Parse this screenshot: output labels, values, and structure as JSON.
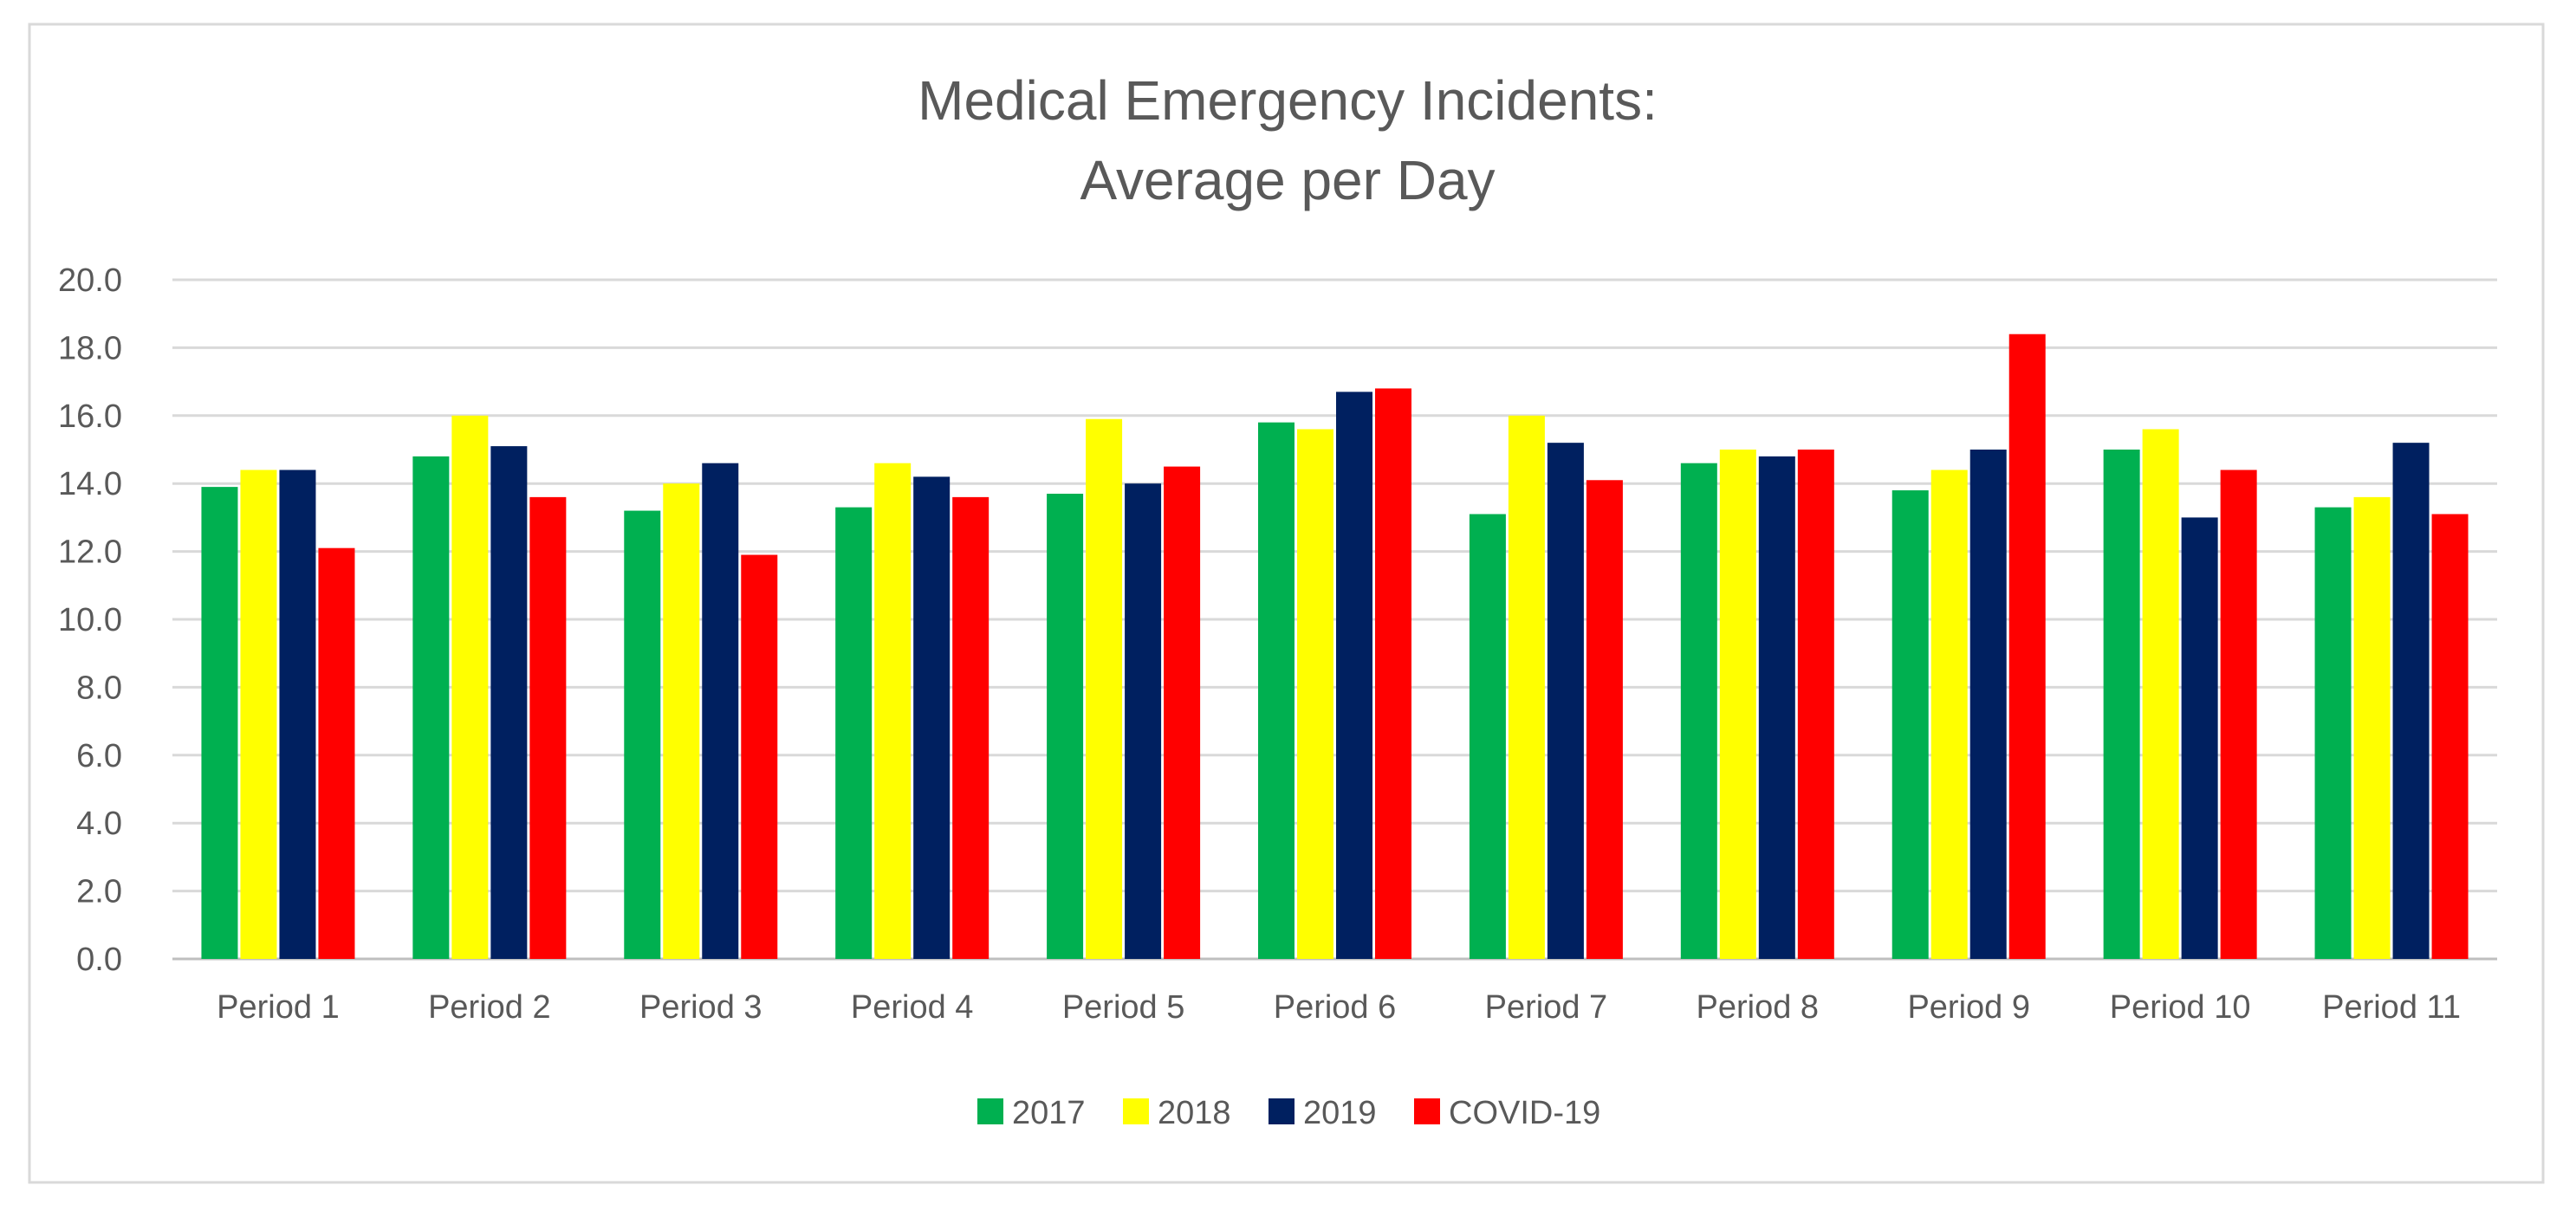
{
  "chart_data": {
    "type": "bar",
    "title": [
      "Medical Emergency Incidents:",
      "Average per Day"
    ],
    "xlabel": "",
    "ylabel": "",
    "ylim": [
      0,
      20
    ],
    "yticks": [
      "0.0",
      "2.0",
      "4.0",
      "6.0",
      "8.0",
      "10.0",
      "12.0",
      "14.0",
      "16.0",
      "18.0",
      "20.0"
    ],
    "grid": true,
    "legend_position": "bottom",
    "categories": [
      "Period 1",
      "Period 2",
      "Period 3",
      "Period 4",
      "Period 5",
      "Period 6",
      "Period 7",
      "Period 8",
      "Period 9",
      "Period 10",
      "Period 11"
    ],
    "series": [
      {
        "name": "2017",
        "color": "#00B050",
        "values": [
          13.9,
          14.8,
          13.2,
          13.3,
          13.7,
          15.8,
          13.1,
          14.6,
          13.8,
          15.0,
          13.3
        ]
      },
      {
        "name": "2018",
        "color": "#FFFF00",
        "values": [
          14.4,
          16.0,
          14.0,
          14.6,
          15.9,
          15.6,
          16.0,
          15.0,
          14.4,
          15.6,
          13.6
        ]
      },
      {
        "name": "2019",
        "color": "#002060",
        "values": [
          14.4,
          15.1,
          14.6,
          14.2,
          14.0,
          16.7,
          15.2,
          14.8,
          15.0,
          13.0,
          15.2
        ]
      },
      {
        "name": "COVID-19",
        "color": "#FF0000",
        "values": [
          12.1,
          13.6,
          11.9,
          13.6,
          14.5,
          16.8,
          14.1,
          15.0,
          18.4,
          14.4,
          13.1
        ]
      }
    ]
  }
}
